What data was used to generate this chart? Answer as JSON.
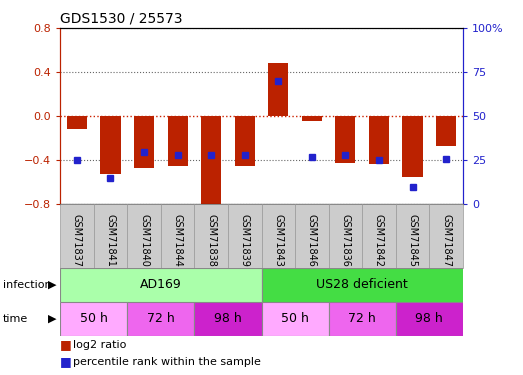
{
  "title": "GDS1530 / 25573",
  "samples": [
    "GSM71837",
    "GSM71841",
    "GSM71840",
    "GSM71844",
    "GSM71838",
    "GSM71839",
    "GSM71843",
    "GSM71846",
    "GSM71836",
    "GSM71842",
    "GSM71845",
    "GSM71847"
  ],
  "log2_ratio": [
    -0.12,
    -0.52,
    -0.47,
    -0.45,
    -0.86,
    -0.45,
    0.48,
    -0.04,
    -0.42,
    -0.43,
    -0.55,
    -0.27
  ],
  "percentile_rank": [
    25,
    15,
    30,
    28,
    28,
    28,
    70,
    27,
    28,
    25,
    10,
    26
  ],
  "ylim_left": [
    -0.8,
    0.8
  ],
  "ylim_right": [
    0,
    100
  ],
  "yticks_left": [
    -0.8,
    -0.4,
    0,
    0.4,
    0.8
  ],
  "yticks_right": [
    0,
    25,
    50,
    75,
    100
  ],
  "ytick_labels_right": [
    "0",
    "25",
    "50",
    "75",
    "100%"
  ],
  "bar_color": "#bb2200",
  "dot_color": "#2222cc",
  "infection_labels": [
    "AD169",
    "US28 deficient"
  ],
  "infection_color_ad169": "#aaffaa",
  "infection_color_us28": "#44dd44",
  "time_labels": [
    "50 h",
    "72 h",
    "98 h",
    "50 h",
    "72 h",
    "98 h"
  ],
  "time_colors": [
    "#ffaaff",
    "#ee66ee",
    "#cc22cc",
    "#ffaaff",
    "#ee66ee",
    "#cc22cc"
  ],
  "legend_bar_label": "log2 ratio",
  "legend_dot_label": "percentile rank within the sample",
  "dotted_line_color": "#666666",
  "zero_line_color": "#cc2200",
  "sample_bg_color": "#cccccc",
  "sample_border_color": "#999999"
}
